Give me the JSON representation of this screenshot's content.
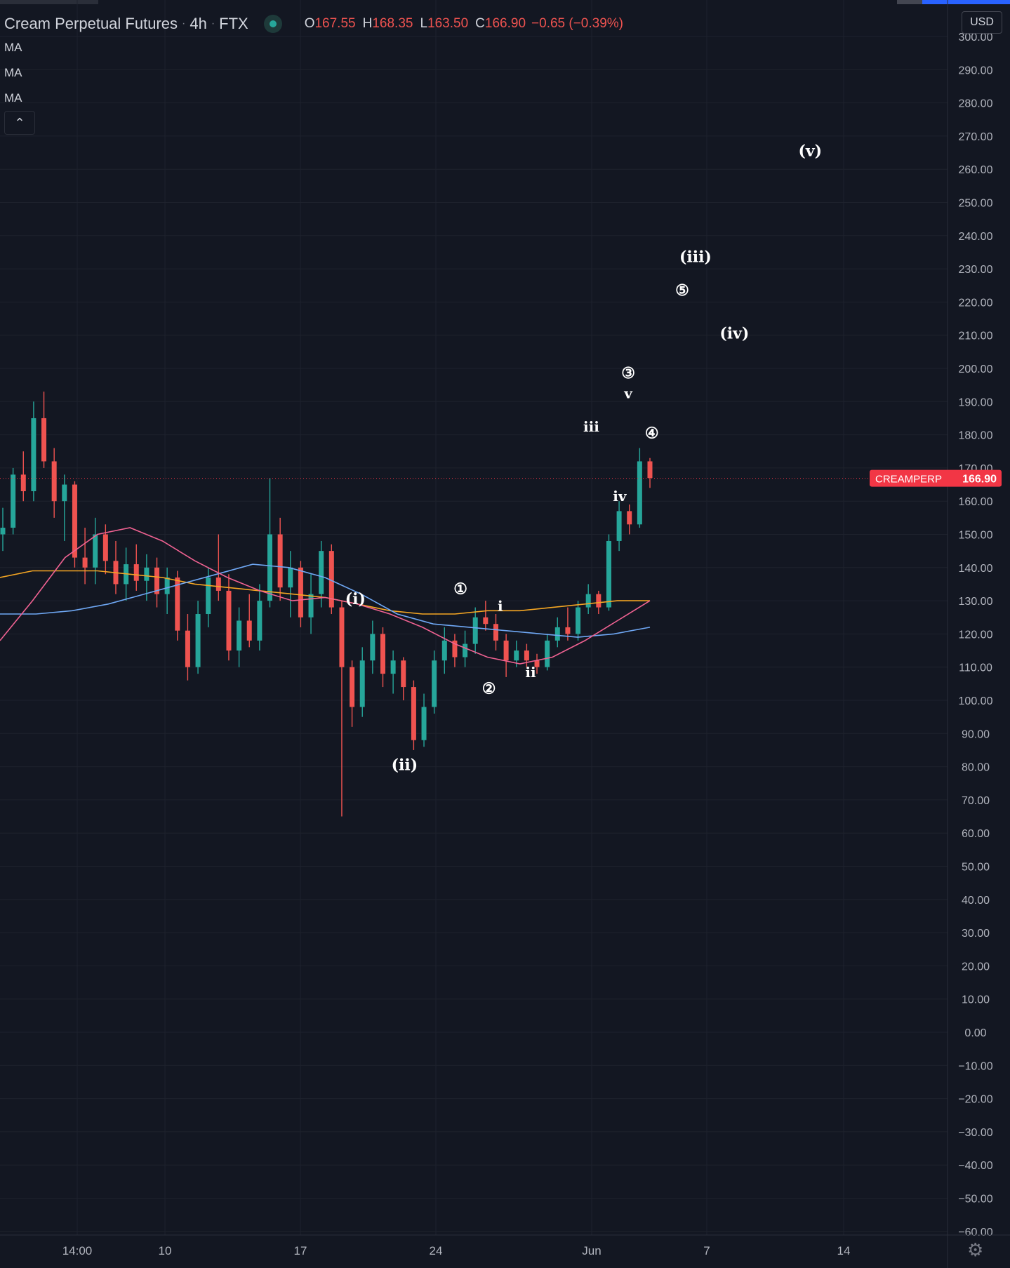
{
  "header": {
    "symbol_name": "Cream Perpetual Futures",
    "interval": "4h",
    "exchange": "FTX",
    "ohlc": {
      "open_label": "O",
      "open": "167.55",
      "high_label": "H",
      "high": "168.35",
      "low_label": "L",
      "low": "163.50",
      "close_label": "C",
      "close": "166.90",
      "change": "−0.65 (−0.39%)"
    }
  },
  "indicators": [
    {
      "label": "MA"
    },
    {
      "label": "MA"
    },
    {
      "label": "MA"
    }
  ],
  "collapse_icon": "chevron-up-icon",
  "price_scale": {
    "currency": "USD",
    "ticks": [
      "300.00",
      "290.00",
      "280.00",
      "270.00",
      "260.00",
      "250.00",
      "240.00",
      "230.00",
      "220.00",
      "210.00",
      "200.00",
      "190.00",
      "180.00",
      "170.00",
      "160.00",
      "150.00",
      "140.00",
      "130.00",
      "120.00",
      "110.00",
      "100.00",
      "90.00",
      "80.00",
      "70.00",
      "60.00",
      "50.00",
      "40.00",
      "30.00",
      "20.00",
      "10.00",
      "0.00",
      "−10.00",
      "−20.00",
      "−30.00",
      "−40.00",
      "−50.00",
      "−60.00"
    ]
  },
  "current_price_label": {
    "symbol": "CREAMPERP",
    "price": "166.90",
    "value": 166.9,
    "color": "#f23645"
  },
  "settings_icon": "gear-icon",
  "colors": {
    "background": "#131722",
    "grid": "#1e222d",
    "up": "#26a69a",
    "down": "#ef5350",
    "ma_orange": "#f5a623",
    "ma_blue": "#6fa8f5",
    "ma_pink": "#f06292"
  },
  "chart_data": {
    "type": "candlestick",
    "ylim": [
      -60,
      300
    ],
    "x_ticks": [
      "14:00",
      "10",
      "17",
      "24",
      "Jun",
      "7",
      "14"
    ],
    "candles_approx": [
      {
        "o": 150,
        "h": 158,
        "l": 145,
        "c": 152
      },
      {
        "o": 152,
        "h": 170,
        "l": 150,
        "c": 168
      },
      {
        "o": 168,
        "h": 175,
        "l": 160,
        "c": 163
      },
      {
        "o": 163,
        "h": 190,
        "l": 160,
        "c": 185
      },
      {
        "o": 185,
        "h": 193,
        "l": 170,
        "c": 172
      },
      {
        "o": 172,
        "h": 176,
        "l": 155,
        "c": 160
      },
      {
        "o": 160,
        "h": 168,
        "l": 148,
        "c": 165
      },
      {
        "o": 165,
        "h": 166,
        "l": 140,
        "c": 143
      },
      {
        "o": 143,
        "h": 152,
        "l": 135,
        "c": 140
      },
      {
        "o": 140,
        "h": 155,
        "l": 135,
        "c": 150
      },
      {
        "o": 150,
        "h": 153,
        "l": 138,
        "c": 142
      },
      {
        "o": 142,
        "h": 148,
        "l": 132,
        "c": 135
      },
      {
        "o": 135,
        "h": 146,
        "l": 130,
        "c": 141
      },
      {
        "o": 141,
        "h": 147,
        "l": 133,
        "c": 136
      },
      {
        "o": 136,
        "h": 144,
        "l": 130,
        "c": 140
      },
      {
        "o": 140,
        "h": 143,
        "l": 128,
        "c": 132
      },
      {
        "o": 132,
        "h": 140,
        "l": 126,
        "c": 137
      },
      {
        "o": 137,
        "h": 139,
        "l": 118,
        "c": 121
      },
      {
        "o": 121,
        "h": 126,
        "l": 106,
        "c": 110
      },
      {
        "o": 110,
        "h": 130,
        "l": 108,
        "c": 126
      },
      {
        "o": 126,
        "h": 140,
        "l": 122,
        "c": 137
      },
      {
        "o": 137,
        "h": 150,
        "l": 130,
        "c": 133
      },
      {
        "o": 133,
        "h": 138,
        "l": 112,
        "c": 115
      },
      {
        "o": 115,
        "h": 128,
        "l": 110,
        "c": 124
      },
      {
        "o": 124,
        "h": 132,
        "l": 116,
        "c": 118
      },
      {
        "o": 118,
        "h": 135,
        "l": 115,
        "c": 130
      },
      {
        "o": 130,
        "h": 167,
        "l": 128,
        "c": 150
      },
      {
        "o": 150,
        "h": 155,
        "l": 130,
        "c": 134
      },
      {
        "o": 134,
        "h": 145,
        "l": 125,
        "c": 140
      },
      {
        "o": 140,
        "h": 142,
        "l": 122,
        "c": 125
      },
      {
        "o": 125,
        "h": 138,
        "l": 120,
        "c": 132
      },
      {
        "o": 132,
        "h": 148,
        "l": 128,
        "c": 145
      },
      {
        "o": 145,
        "h": 147,
        "l": 126,
        "c": 128
      },
      {
        "o": 128,
        "h": 130,
        "l": 65,
        "c": 110
      },
      {
        "o": 110,
        "h": 112,
        "l": 92,
        "c": 98
      },
      {
        "o": 98,
        "h": 116,
        "l": 95,
        "c": 112
      },
      {
        "o": 112,
        "h": 124,
        "l": 108,
        "c": 120
      },
      {
        "o": 120,
        "h": 122,
        "l": 104,
        "c": 108
      },
      {
        "o": 108,
        "h": 115,
        "l": 102,
        "c": 112
      },
      {
        "o": 112,
        "h": 113,
        "l": 100,
        "c": 104
      },
      {
        "o": 104,
        "h": 106,
        "l": 85,
        "c": 88
      },
      {
        "o": 88,
        "h": 102,
        "l": 86,
        "c": 98
      },
      {
        "o": 98,
        "h": 115,
        "l": 96,
        "c": 112
      },
      {
        "o": 112,
        "h": 122,
        "l": 108,
        "c": 118
      },
      {
        "o": 118,
        "h": 120,
        "l": 110,
        "c": 113
      },
      {
        "o": 113,
        "h": 121,
        "l": 110,
        "c": 117
      },
      {
        "o": 117,
        "h": 128,
        "l": 114,
        "c": 125
      },
      {
        "o": 125,
        "h": 130,
        "l": 121,
        "c": 123
      },
      {
        "o": 123,
        "h": 126,
        "l": 115,
        "c": 118
      },
      {
        "o": 118,
        "h": 120,
        "l": 107,
        "c": 112
      },
      {
        "o": 112,
        "h": 118,
        "l": 110,
        "c": 115
      },
      {
        "o": 115,
        "h": 117,
        "l": 110,
        "c": 112
      },
      {
        "o": 112,
        "h": 114,
        "l": 108,
        "c": 110
      },
      {
        "o": 110,
        "h": 120,
        "l": 109,
        "c": 118
      },
      {
        "o": 118,
        "h": 125,
        "l": 116,
        "c": 122
      },
      {
        "o": 122,
        "h": 128,
        "l": 118,
        "c": 120
      },
      {
        "o": 120,
        "h": 130,
        "l": 118,
        "c": 128
      },
      {
        "o": 128,
        "h": 135,
        "l": 126,
        "c": 132
      },
      {
        "o": 132,
        "h": 133,
        "l": 126,
        "c": 128
      },
      {
        "o": 128,
        "h": 150,
        "l": 127,
        "c": 148
      },
      {
        "o": 148,
        "h": 160,
        "l": 145,
        "c": 157
      },
      {
        "o": 157,
        "h": 159,
        "l": 150,
        "c": 153
      },
      {
        "o": 153,
        "h": 176,
        "l": 152,
        "c": 172
      },
      {
        "o": 172,
        "h": 173,
        "l": 164,
        "c": 167
      }
    ],
    "moving_averages": [
      {
        "color": "#f5a623",
        "values": [
          137,
          139,
          139,
          139,
          138,
          137,
          135,
          134,
          133,
          132,
          131,
          129,
          127,
          126,
          126,
          127,
          127,
          128,
          129,
          130,
          130
        ]
      },
      {
        "color": "#6fa8f5",
        "values": [
          126,
          126,
          127,
          129,
          132,
          135,
          138,
          141,
          140,
          137,
          132,
          126,
          123,
          122,
          121,
          120,
          119,
          120,
          122
        ]
      },
      {
        "color": "#f06292",
        "values": [
          118,
          130,
          143,
          150,
          152,
          148,
          142,
          137,
          133,
          130,
          131,
          129,
          126,
          122,
          117,
          113,
          111,
          113,
          118,
          124,
          130
        ]
      }
    ],
    "wave_labels": [
      {
        "text": "(i)",
        "x_frac": 0.375,
        "price": 129,
        "size": 22
      },
      {
        "text": "(ii)",
        "x_frac": 0.427,
        "price": 79,
        "size": 22
      },
      {
        "text": "(iii)",
        "x_frac": 0.734,
        "price": 232,
        "size": 22
      },
      {
        "text": "(iv)",
        "x_frac": 0.775,
        "price": 209,
        "size": 22
      },
      {
        "text": "(v)",
        "x_frac": 0.855,
        "price": 264,
        "size": 22
      },
      {
        "text": "①",
        "x_frac": 0.486,
        "price": 132,
        "size": 22
      },
      {
        "text": "②",
        "x_frac": 0.516,
        "price": 102,
        "size": 22
      },
      {
        "text": "③",
        "x_frac": 0.663,
        "price": 197,
        "size": 22
      },
      {
        "text": "④",
        "x_frac": 0.688,
        "price": 179,
        "size": 22
      },
      {
        "text": "⑤",
        "x_frac": 0.72,
        "price": 222,
        "size": 22
      },
      {
        "text": "i",
        "x_frac": 0.528,
        "price": 127,
        "size": 20
      },
      {
        "text": "ii",
        "x_frac": 0.56,
        "price": 107,
        "size": 20
      },
      {
        "text": "iii",
        "x_frac": 0.624,
        "price": 181,
        "size": 20
      },
      {
        "text": "iv",
        "x_frac": 0.654,
        "price": 160,
        "size": 20
      },
      {
        "text": "v",
        "x_frac": 0.663,
        "price": 191,
        "size": 20
      }
    ]
  }
}
